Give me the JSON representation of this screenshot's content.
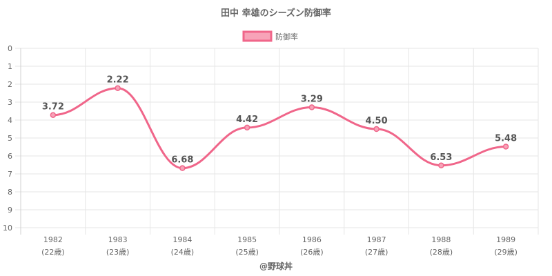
{
  "chart_data": {
    "type": "line",
    "title": "田中 幸雄のシーズン防御率",
    "categories": [
      "1982",
      "1983",
      "1984",
      "1985",
      "1986",
      "1987",
      "1988",
      "1989"
    ],
    "category_sublabels": [
      "(22歳)",
      "(23歳)",
      "(24歳)",
      "(25歳)",
      "(26歳)",
      "(27歳)",
      "(28歳)",
      "(29歳)"
    ],
    "series": [
      {
        "name": "防御率",
        "values": [
          3.72,
          2.22,
          6.68,
          4.42,
          3.29,
          4.5,
          6.53,
          5.48
        ],
        "labels": [
          "3.72",
          "2.22",
          "6.68",
          "4.42",
          "3.29",
          "4.50",
          "6.53",
          "5.48"
        ]
      }
    ],
    "y_ticks": [
      "0",
      "1",
      "2",
      "3",
      "4",
      "5",
      "6",
      "7",
      "8",
      "9",
      "10"
    ],
    "ylim": [
      0,
      10
    ],
    "y_reversed": true,
    "grid": true,
    "legend_position": "top",
    "source": "@野球丼"
  },
  "colors": {
    "line": "#f0668a",
    "legend_fill": "#f7a3b8",
    "grid": "#e6e6e6",
    "text": "#666666"
  }
}
